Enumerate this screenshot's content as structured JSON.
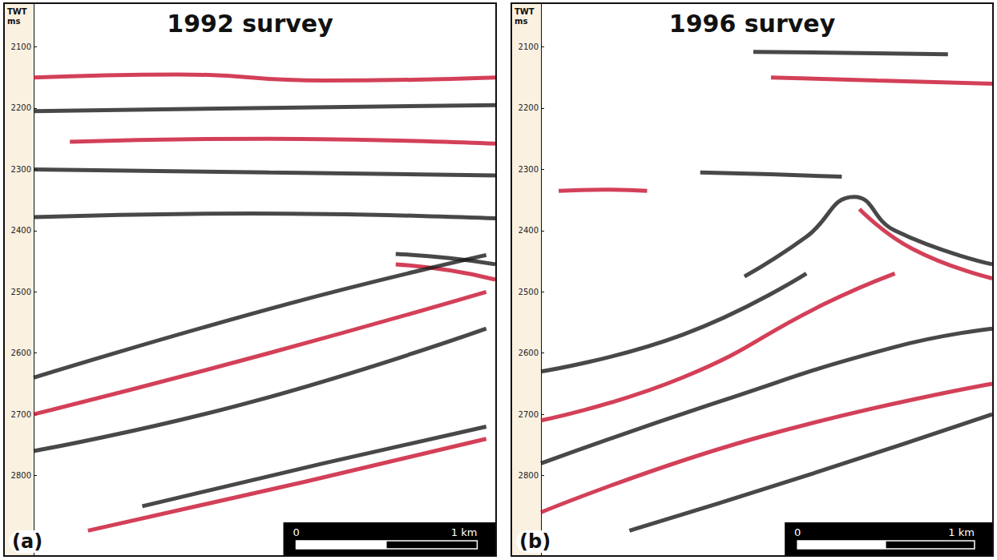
{
  "chart_data": [
    {
      "type": "seismic",
      "title": "1992 survey",
      "panel_label": "(a)",
      "ylabel": "TWT ms",
      "xlim": [
        0,
        2.55
      ],
      "ylim": [
        2030,
        2930
      ],
      "yticks": [
        2100,
        2200,
        2300,
        2400,
        2500,
        2600,
        2700,
        2800
      ],
      "scale_bar": {
        "start": 1.45,
        "length": 1,
        "labels": [
          "0",
          "1 km"
        ]
      },
      "reflectors": [
        {
          "color": "red",
          "points": [
            [
              0,
              2150
            ],
            [
              0.8,
              2145
            ],
            [
              1.6,
              2155
            ],
            [
              2.55,
              2150
            ]
          ]
        },
        {
          "color": "black",
          "points": [
            [
              0,
              2205
            ],
            [
              1.2,
              2200
            ],
            [
              2.55,
              2195
            ]
          ]
        },
        {
          "color": "red",
          "points": [
            [
              0.2,
              2255
            ],
            [
              1.3,
              2250
            ],
            [
              2.55,
              2258
            ]
          ]
        },
        {
          "color": "black",
          "points": [
            [
              0,
              2300
            ],
            [
              1.3,
              2305
            ],
            [
              2.55,
              2310
            ]
          ]
        },
        {
          "color": "black",
          "points": [
            [
              0,
              2378
            ],
            [
              1.2,
              2372
            ],
            [
              2.55,
              2380
            ]
          ]
        },
        {
          "color": "black",
          "points": [
            [
              2.0,
              2438
            ],
            [
              2.3,
              2445
            ],
            [
              2.55,
              2455
            ]
          ]
        },
        {
          "color": "red",
          "points": [
            [
              2.0,
              2455
            ],
            [
              2.3,
              2465
            ],
            [
              2.55,
              2480
            ]
          ]
        },
        {
          "color": "black",
          "points": [
            [
              0,
              2640
            ],
            [
              1.4,
              2520
            ],
            [
              2.5,
              2440
            ]
          ]
        },
        {
          "color": "red",
          "points": [
            [
              0,
              2700
            ],
            [
              1.3,
              2600
            ],
            [
              2.5,
              2500
            ]
          ]
        },
        {
          "color": "black",
          "points": [
            [
              0,
              2760
            ],
            [
              1.2,
              2680
            ],
            [
              2.5,
              2560
            ]
          ]
        },
        {
          "color": "black",
          "points": [
            [
              0.6,
              2850
            ],
            [
              1.6,
              2780
            ],
            [
              2.5,
              2720
            ]
          ]
        },
        {
          "color": "red",
          "points": [
            [
              0.3,
              2890
            ],
            [
              1.5,
              2810
            ],
            [
              2.5,
              2740
            ]
          ]
        }
      ]
    },
    {
      "type": "seismic",
      "title": "1996 survey",
      "panel_label": "(b)",
      "ylabel": "TWT ms",
      "xlim": [
        0,
        2.55
      ],
      "ylim": [
        2030,
        2930
      ],
      "yticks": [
        2100,
        2200,
        2300,
        2400,
        2500,
        2600,
        2700,
        2800
      ],
      "scale_bar": {
        "start": 1.45,
        "length": 1,
        "labels": [
          "0",
          "1 km"
        ]
      },
      "reflectors": [
        {
          "color": "black",
          "points": [
            [
              1.2,
              2108
            ],
            [
              1.8,
              2110
            ],
            [
              2.3,
              2112
            ]
          ]
        },
        {
          "color": "red",
          "points": [
            [
              1.3,
              2150
            ],
            [
              1.9,
              2155
            ],
            [
              2.55,
              2160
            ]
          ]
        },
        {
          "color": "black",
          "points": [
            [
              0.9,
              2305
            ],
            [
              1.3,
              2308
            ],
            [
              1.7,
              2312
            ]
          ]
        },
        {
          "color": "red",
          "points": [
            [
              0.1,
              2335
            ],
            [
              0.35,
              2333
            ],
            [
              0.6,
              2335
            ]
          ]
        },
        {
          "color": "black",
          "points": [
            [
              1.15,
              2475
            ],
            [
              1.5,
              2410
            ],
            [
              1.77,
              2345
            ],
            [
              2.0,
              2400
            ],
            [
              2.55,
              2455
            ]
          ]
        },
        {
          "color": "red",
          "points": [
            [
              1.8,
              2365
            ],
            [
              2.1,
              2430
            ],
            [
              2.55,
              2478
            ]
          ]
        },
        {
          "color": "black",
          "points": [
            [
              0,
              2630
            ],
            [
              0.8,
              2570
            ],
            [
              1.5,
              2470
            ]
          ]
        },
        {
          "color": "red",
          "points": [
            [
              0,
              2710
            ],
            [
              0.8,
              2640
            ],
            [
              1.6,
              2520
            ],
            [
              2.0,
              2470
            ]
          ]
        },
        {
          "color": "black",
          "points": [
            [
              0,
              2780
            ],
            [
              1.0,
              2680
            ],
            [
              2.0,
              2590
            ],
            [
              2.55,
              2560
            ]
          ]
        },
        {
          "color": "red",
          "points": [
            [
              0,
              2860
            ],
            [
              1.2,
              2740
            ],
            [
              2.55,
              2650
            ]
          ]
        },
        {
          "color": "black",
          "points": [
            [
              0.5,
              2890
            ],
            [
              1.5,
              2800
            ],
            [
              2.55,
              2700
            ]
          ]
        }
      ]
    }
  ]
}
